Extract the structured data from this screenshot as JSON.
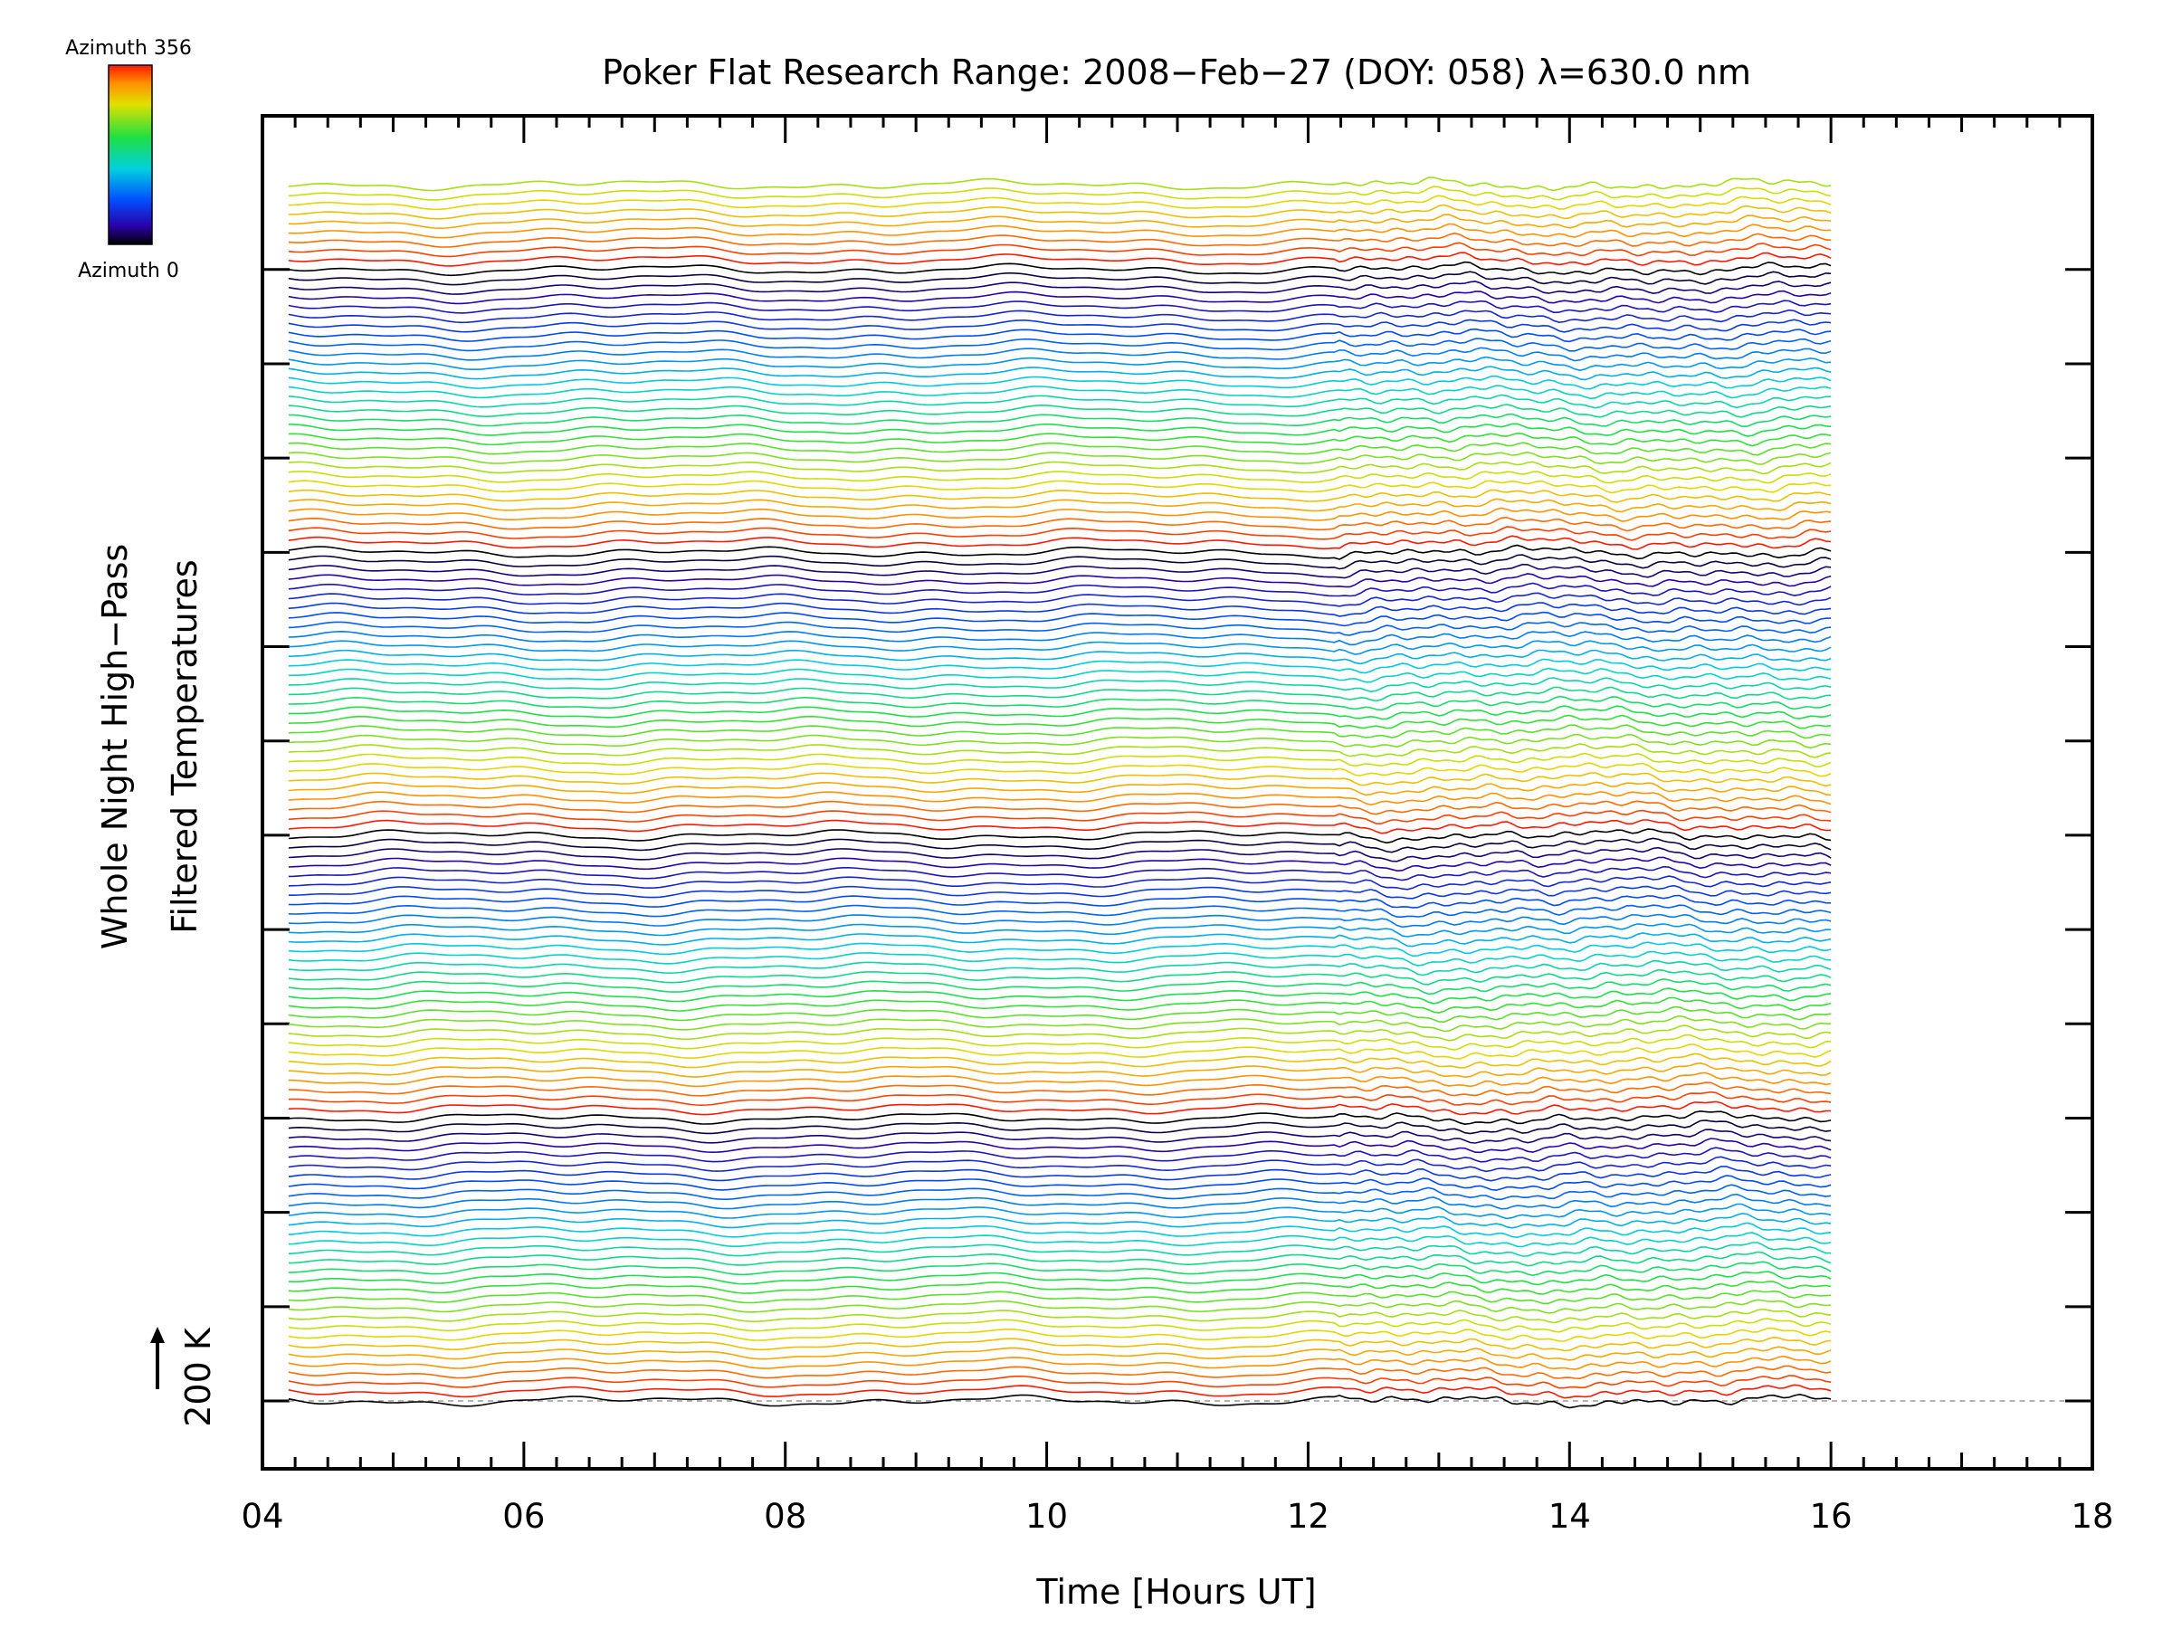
{
  "chart_data": {
    "type": "line",
    "title": "Poker Flat Research Range: 2008−Feb−27 (DOY: 058) λ=630.0 nm",
    "xlabel": "Time [Hours UT]",
    "ylabel_line1": "Whole Night High−Pass",
    "ylabel_line2": "Filtered Temperatures",
    "scale_label": "200 K",
    "xlim": [
      4,
      18
    ],
    "x_tick_labels": [
      "04",
      "06",
      "08",
      "10",
      "12",
      "14",
      "16",
      "18"
    ],
    "data_x_range": [
      4.2,
      16.0
    ],
    "n_traces": 130,
    "trace_offset_K": 25,
    "baseline_trace_index": 0,
    "colorbar": {
      "top_label": "Azimuth 356",
      "bottom_label": "Azimuth 0",
      "range": [
        0,
        356
      ],
      "colormap": "rainbow"
    },
    "colors": {
      "background": "#ffffff",
      "axes": "#000000",
      "baseline": "#999999"
    },
    "grid": false
  }
}
